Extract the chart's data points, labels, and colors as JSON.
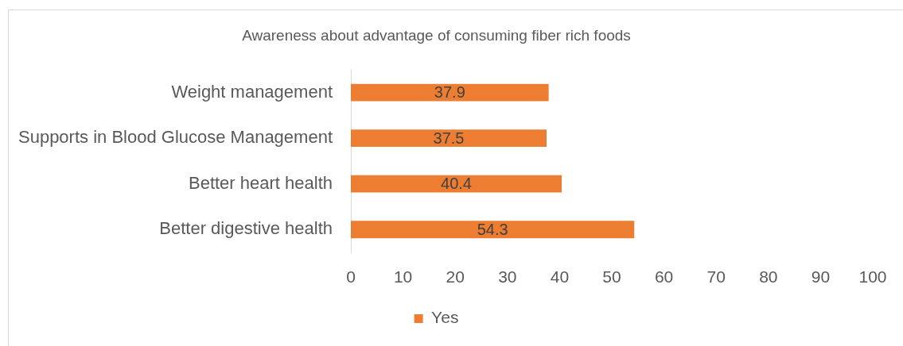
{
  "chart_data": {
    "type": "bar",
    "orientation": "horizontal",
    "title": "Awareness about advantage of consuming fiber rich foods",
    "categories": [
      "Weight management",
      "Supports in Blood Glucose Management",
      "Better heart health",
      "Better digestive health"
    ],
    "series": [
      {
        "name": "Yes",
        "color": "#ed7d31",
        "values": [
          37.9,
          37.5,
          40.4,
          54.3
        ]
      }
    ],
    "xlim": [
      0,
      100
    ],
    "xticks": [
      0,
      10,
      20,
      30,
      40,
      50,
      60,
      70,
      80,
      90,
      100
    ],
    "legend": "bottom",
    "data_labels": true
  }
}
